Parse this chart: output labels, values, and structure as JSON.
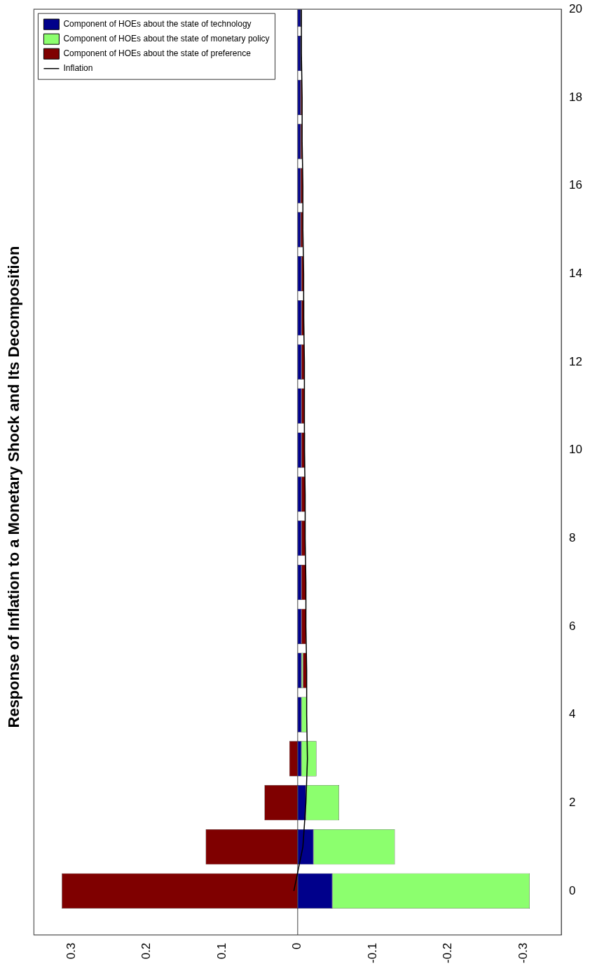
{
  "chart_data": {
    "type": "bar",
    "stacked": true,
    "orientation": "horizontal",
    "title": "Response of Inflation to a Monetary Shock and Its Decomposition",
    "x": [
      0,
      1,
      2,
      3,
      4,
      5,
      6,
      7,
      8,
      9,
      10,
      11,
      12,
      13,
      14,
      15,
      16,
      17,
      18,
      19,
      20
    ],
    "ylim": [
      -1,
      20
    ],
    "yticks": [
      0,
      2,
      4,
      6,
      8,
      10,
      12,
      14,
      16,
      18,
      20
    ],
    "xlim": [
      0.35,
      -0.35
    ],
    "xticks": [
      0.3,
      0.2,
      0.1,
      0,
      -0.1,
      -0.2,
      -0.3
    ],
    "grid": false,
    "legend": "top left",
    "marker": "none",
    "line_style": "solid",
    "ref_lines": [
      {
        "axis": "x",
        "value": 0,
        "color": "#808080"
      }
    ],
    "series": [
      {
        "name": "Component of HOEs about the state of technology",
        "color": "#00008b",
        "values": [
          -0.046,
          -0.021,
          -0.011,
          -0.005,
          -0.005,
          -0.005,
          -0.005,
          -0.005,
          -0.005,
          -0.005,
          -0.005,
          -0.005,
          -0.005,
          -0.005,
          -0.005,
          -0.004,
          -0.004,
          -0.004,
          -0.004,
          -0.004,
          -0.004
        ]
      },
      {
        "name": "Component of HOEs about the state of monetary policy",
        "color": "#8cff6e",
        "values": [
          -0.262,
          -0.108,
          -0.044,
          -0.02,
          -0.007,
          -0.002,
          0,
          0,
          0,
          0,
          0,
          0,
          0,
          0,
          0,
          0,
          0,
          0,
          0,
          0,
          0
        ]
      },
      {
        "name": "Component of HOEs about the state of preference",
        "color": "#7f0000",
        "values": [
          0.313,
          0.122,
          0.044,
          0.011,
          0,
          -0.005,
          -0.006,
          -0.006,
          -0.005,
          -0.005,
          -0.005,
          -0.004,
          -0.004,
          -0.004,
          -0.003,
          -0.003,
          -0.003,
          -0.002,
          -0.002,
          -0.001,
          -0.001
        ]
      },
      {
        "name": "Inflation",
        "type": "line",
        "color": "#000000",
        "values": [
          0.005,
          -0.007,
          -0.011,
          -0.013,
          -0.012,
          -0.012,
          -0.011,
          -0.011,
          -0.01,
          -0.01,
          -0.009,
          -0.009,
          -0.009,
          -0.008,
          -0.008,
          -0.007,
          -0.007,
          -0.006,
          -0.006,
          -0.005,
          -0.005
        ]
      }
    ]
  }
}
